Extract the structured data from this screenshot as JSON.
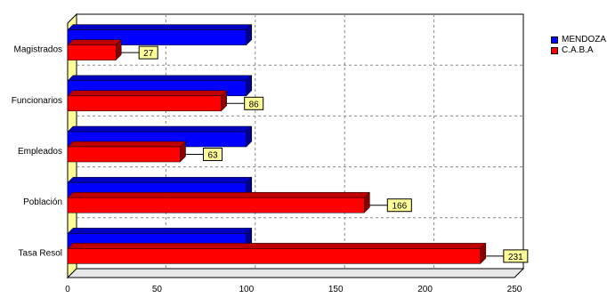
{
  "chart_data": {
    "type": "bar",
    "orientation": "horizontal",
    "style": "3d",
    "categories": [
      "Magistrados",
      "Funcionarios",
      "Empleados",
      "Población",
      "Tasa Resol"
    ],
    "series": [
      {
        "name": "MENDOZA",
        "color": "#0000ff",
        "values": [
          100,
          100,
          100,
          100,
          100
        ]
      },
      {
        "name": "C.A.B.A",
        "color": "#ff0000",
        "values": [
          27,
          86,
          63,
          166,
          231
        ],
        "data_labels": [
          "27",
          "86",
          "63",
          "166",
          "231"
        ]
      }
    ],
    "xlim": [
      0,
      250
    ],
    "xticks": [
      "0",
      "50",
      "100",
      "150",
      "200",
      "250"
    ],
    "grid": true,
    "legend_position": "top-right",
    "title": "",
    "xlabel": "",
    "ylabel": ""
  }
}
